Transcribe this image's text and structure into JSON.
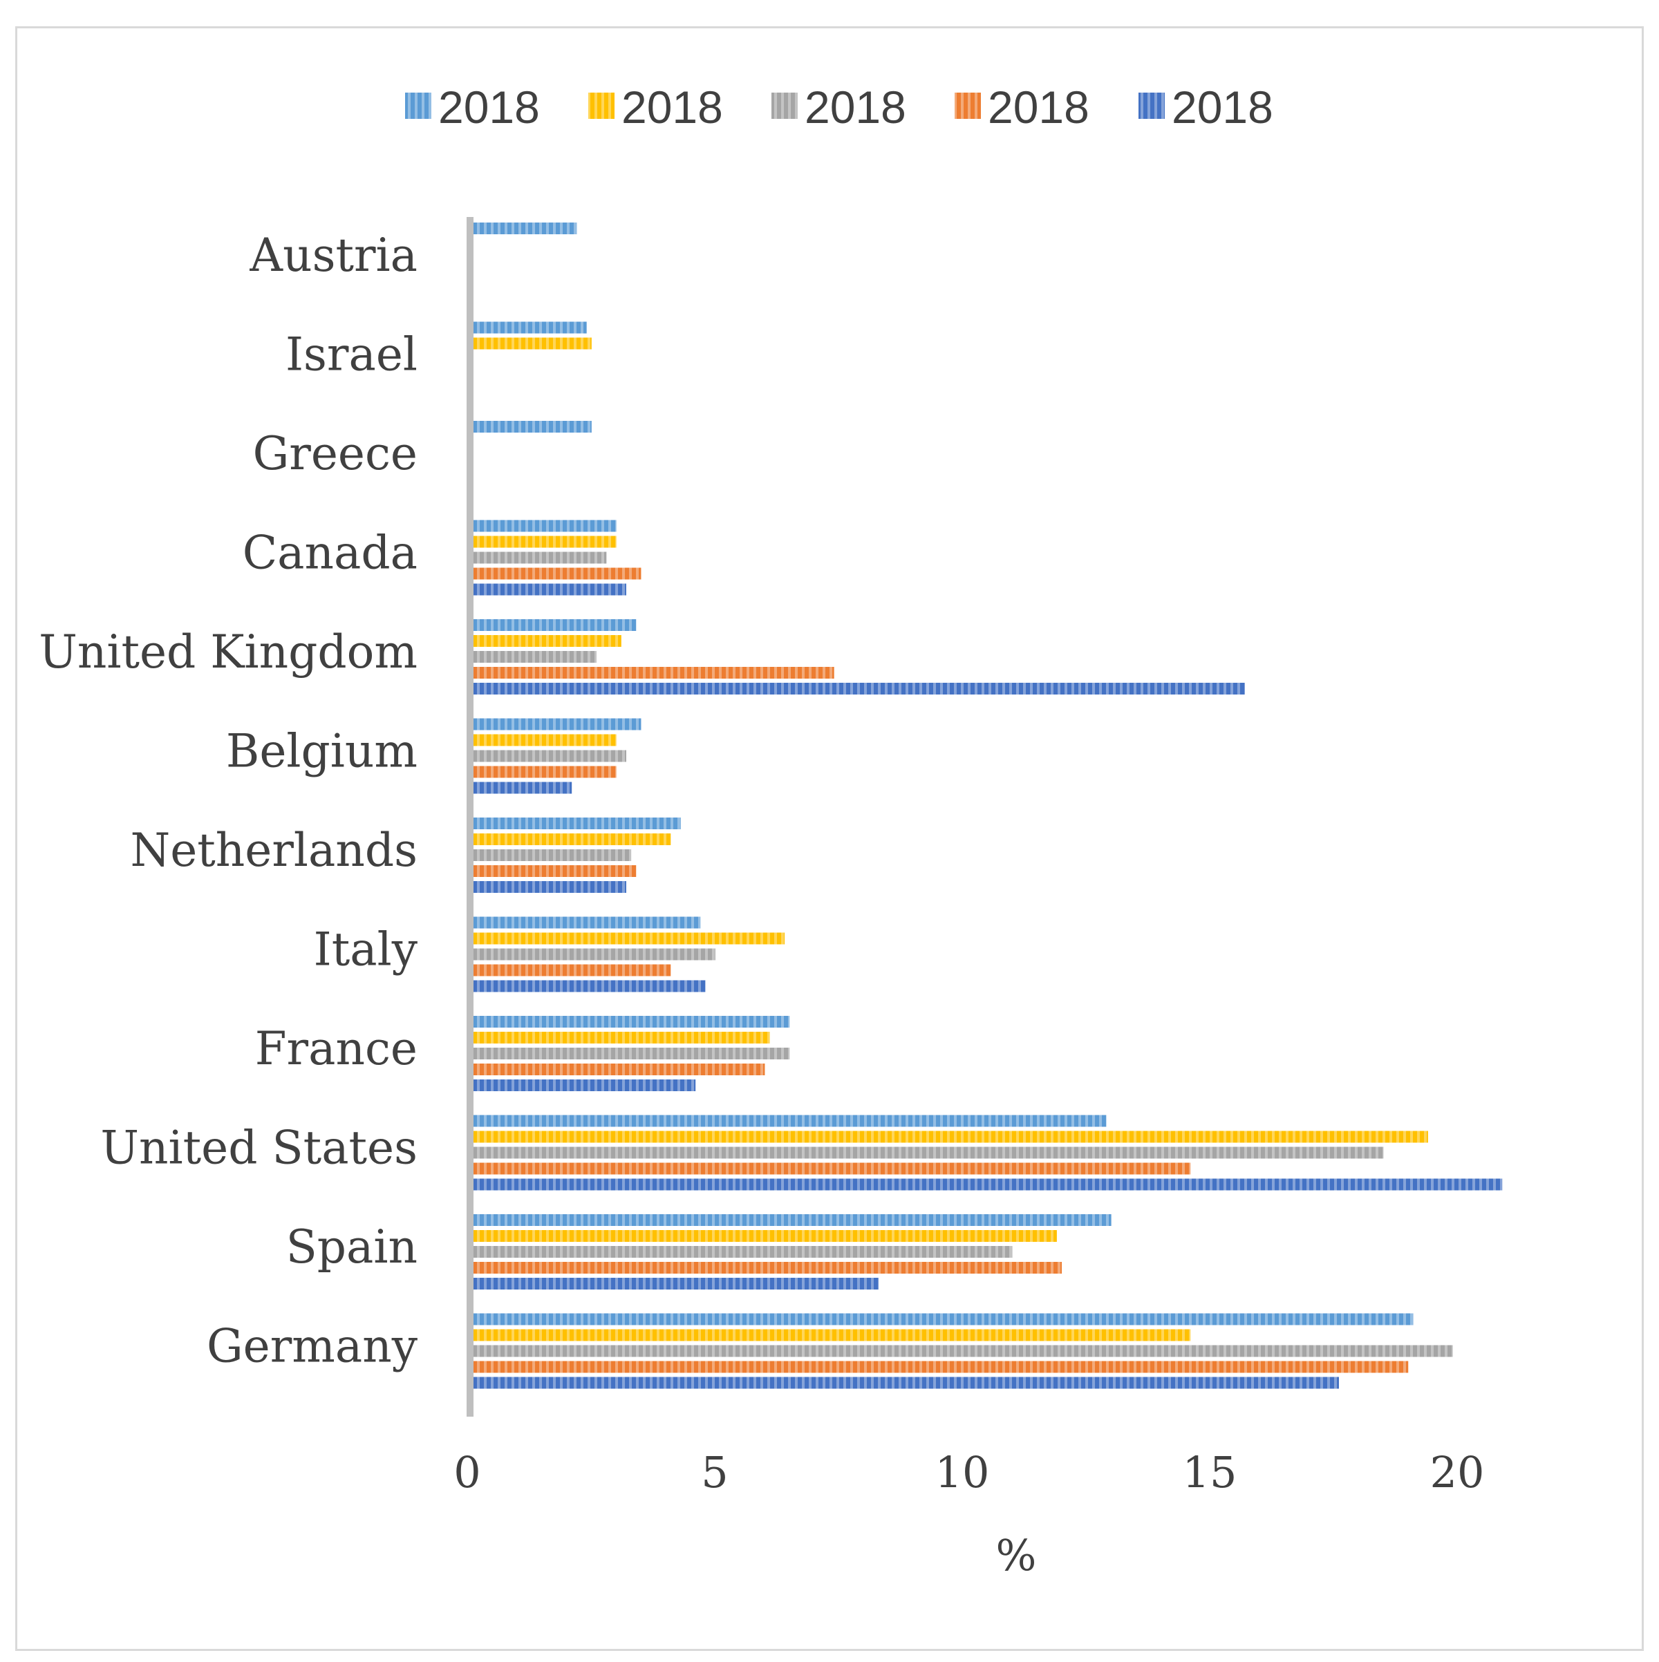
{
  "chart_data": {
    "type": "bar",
    "orientation": "horizontal",
    "title": "",
    "xlabel": "%",
    "ylabel": "",
    "xlim": [
      0,
      20
    ],
    "xticks": [
      0,
      5,
      10,
      15,
      20
    ],
    "grid": false,
    "legend_position": "top",
    "categories": [
      "Austria",
      "Israel",
      "Greece",
      "Canada",
      "United Kingdom",
      "Belgium",
      "Netherlands",
      "Italy",
      "France",
      "United States",
      "Spain",
      "Germany"
    ],
    "series": [
      {
        "name": "2018",
        "color": "#5b9bd5",
        "values": [
          2.1,
          2.3,
          2.4,
          2.9,
          3.3,
          3.4,
          4.2,
          4.6,
          6.4,
          12.8,
          12.9,
          19.0
        ]
      },
      {
        "name": "2018",
        "color": "#ffc000",
        "values": [
          null,
          2.4,
          null,
          2.9,
          3.0,
          2.9,
          4.0,
          6.3,
          6.0,
          19.3,
          11.8,
          14.5
        ]
      },
      {
        "name": "2018",
        "color": "#a5a5a5",
        "values": [
          null,
          null,
          null,
          2.7,
          2.5,
          3.1,
          3.2,
          4.9,
          6.4,
          18.4,
          10.9,
          19.8
        ]
      },
      {
        "name": "2018",
        "color": "#ed7d31",
        "values": [
          null,
          null,
          null,
          3.4,
          7.3,
          2.9,
          3.3,
          4.0,
          5.9,
          14.5,
          11.9,
          18.9
        ]
      },
      {
        "name": "2018",
        "color": "#4472c4",
        "values": [
          null,
          null,
          null,
          3.1,
          15.6,
          2.0,
          3.1,
          4.7,
          4.5,
          20.8,
          8.2,
          17.5
        ]
      }
    ]
  }
}
